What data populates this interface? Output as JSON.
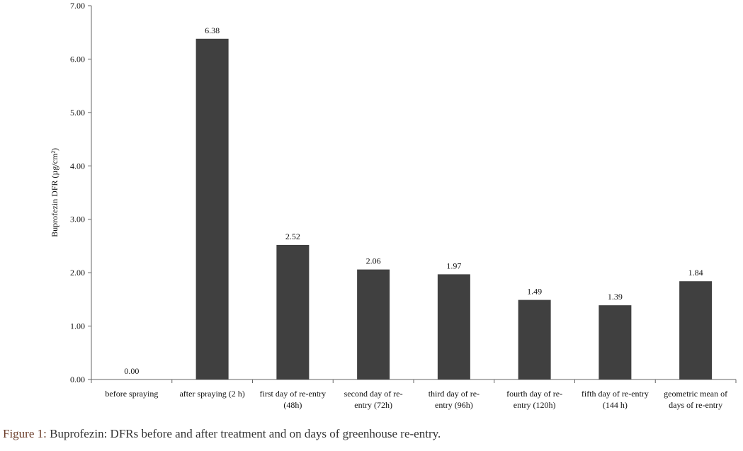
{
  "chart_data": {
    "type": "bar",
    "ylabel": "Buprofezin DFR (µg/cm²)",
    "ylim": [
      0,
      7
    ],
    "yticks": [
      "0.00",
      "1.00",
      "2.00",
      "3.00",
      "4.00",
      "5.00",
      "6.00",
      "7.00"
    ],
    "grid": false,
    "categories": [
      [
        "before spraying"
      ],
      [
        "after spraying (2 h)"
      ],
      [
        "first day of re-entry",
        "(48h)"
      ],
      [
        "second day of re-",
        "entry (72h)"
      ],
      [
        "third day of re-",
        "entry (96h)"
      ],
      [
        "fourth day of re-",
        "entry (120h)"
      ],
      [
        "fifth day of re-entry",
        "(144 h)"
      ],
      [
        "geometric mean of",
        "days of re-entry"
      ]
    ],
    "values": [
      0.0,
      6.38,
      2.52,
      2.06,
      1.97,
      1.49,
      1.39,
      1.84
    ],
    "data_labels": [
      "0.00",
      "6.38",
      "2.52",
      "2.06",
      "1.97",
      "1.49",
      "1.39",
      "1.84"
    ],
    "bar_color": "#404040"
  },
  "caption": {
    "prefix": "Figure 1:",
    "text": " Buprofezin: DFRs before and after treatment and on days of greenhouse re-entry."
  }
}
